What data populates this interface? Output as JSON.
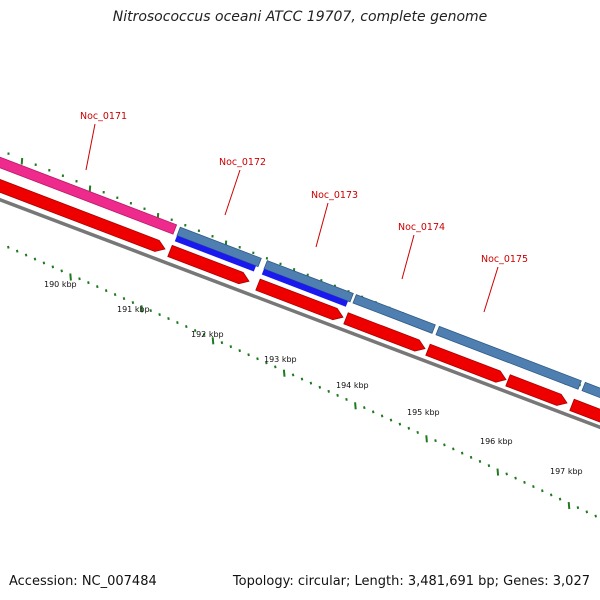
{
  "title": "Nitrosococcus oceani ATCC 19707, complete genome",
  "footer": {
    "accession": "Accession: NC_007484",
    "summary": "Topology: circular; Length: 3,481,691 bp; Genes: 3,027"
  },
  "colors": {
    "label_red": "#cc0000",
    "tick_green": "#1f7a1f",
    "forward_feature_pink": "#ee2a8c",
    "forward_feature_steel": "#4f7fb0",
    "forward_cds_blue": "#1a1aee",
    "reverse_cds_red": "#ee0000",
    "backbone_gray": "#777777"
  },
  "gene_labels": [
    "Noc_0171",
    "Noc_0172",
    "Noc_0173",
    "Noc_0174",
    "Noc_0175"
  ],
  "scale_labels": [
    "190 kbp",
    "191 kbp",
    "192 kbp",
    "193 kbp",
    "194 kbp",
    "195 kbp",
    "196 kbp",
    "197 kbp"
  ]
}
